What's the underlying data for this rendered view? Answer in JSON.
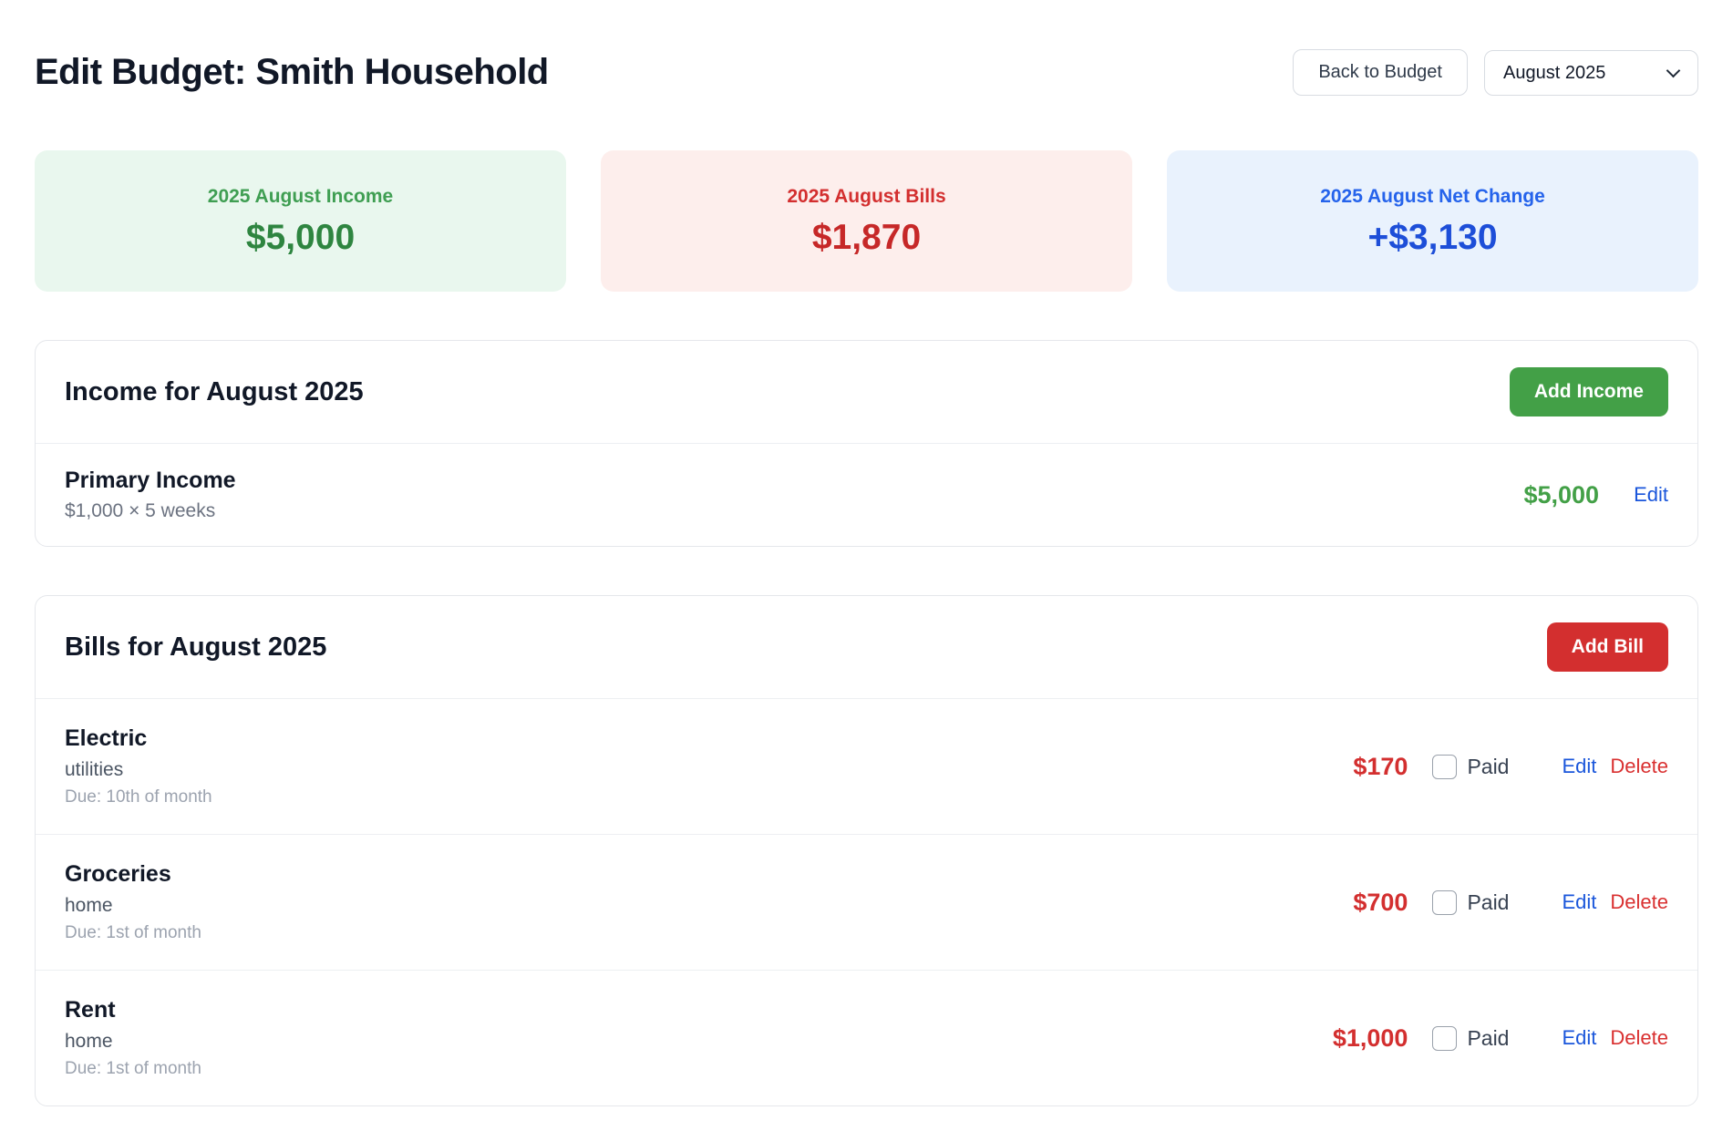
{
  "header": {
    "title": "Edit Budget: Smith Household",
    "back_button": "Back to Budget",
    "month_selector": "August 2025"
  },
  "summary_cards": [
    {
      "label": "2025 August Income",
      "value": "$5,000",
      "theme": "green",
      "bg": "#e9f7ee",
      "text": "#2e8540"
    },
    {
      "label": "2025 August Bills",
      "value": "$1,870",
      "theme": "red",
      "bg": "#fdeeec",
      "text": "#c62828"
    },
    {
      "label": "2025 August Net Change",
      "value": "+$3,130",
      "theme": "blue",
      "bg": "#e9f2fd",
      "text": "#1d4ed8"
    }
  ],
  "income_section": {
    "title": "Income for August 2025",
    "add_button": "Add Income",
    "edit_label": "Edit",
    "items": [
      {
        "name": "Primary Income",
        "detail": "$1,000 × 5 weeks",
        "amount": "$5,000"
      }
    ]
  },
  "bills_section": {
    "title": "Bills for August 2025",
    "add_button": "Add Bill",
    "paid_label": "Paid",
    "edit_label": "Edit",
    "delete_label": "Delete",
    "items": [
      {
        "name": "Electric",
        "category": "utilities",
        "due": "Due: 10th of month",
        "amount": "$170",
        "paid": false
      },
      {
        "name": "Groceries",
        "category": "home",
        "due": "Due: 1st of month",
        "amount": "$700",
        "paid": false
      },
      {
        "name": "Rent",
        "category": "home",
        "due": "Due: 1st of month",
        "amount": "$1,000",
        "paid": false
      }
    ]
  },
  "colors": {
    "income_green": "#43a047",
    "bill_red": "#d32f2f",
    "link_blue": "#1a56db",
    "delete_red": "#d93030",
    "heading": "#111827",
    "border": "#e5e7eb"
  }
}
